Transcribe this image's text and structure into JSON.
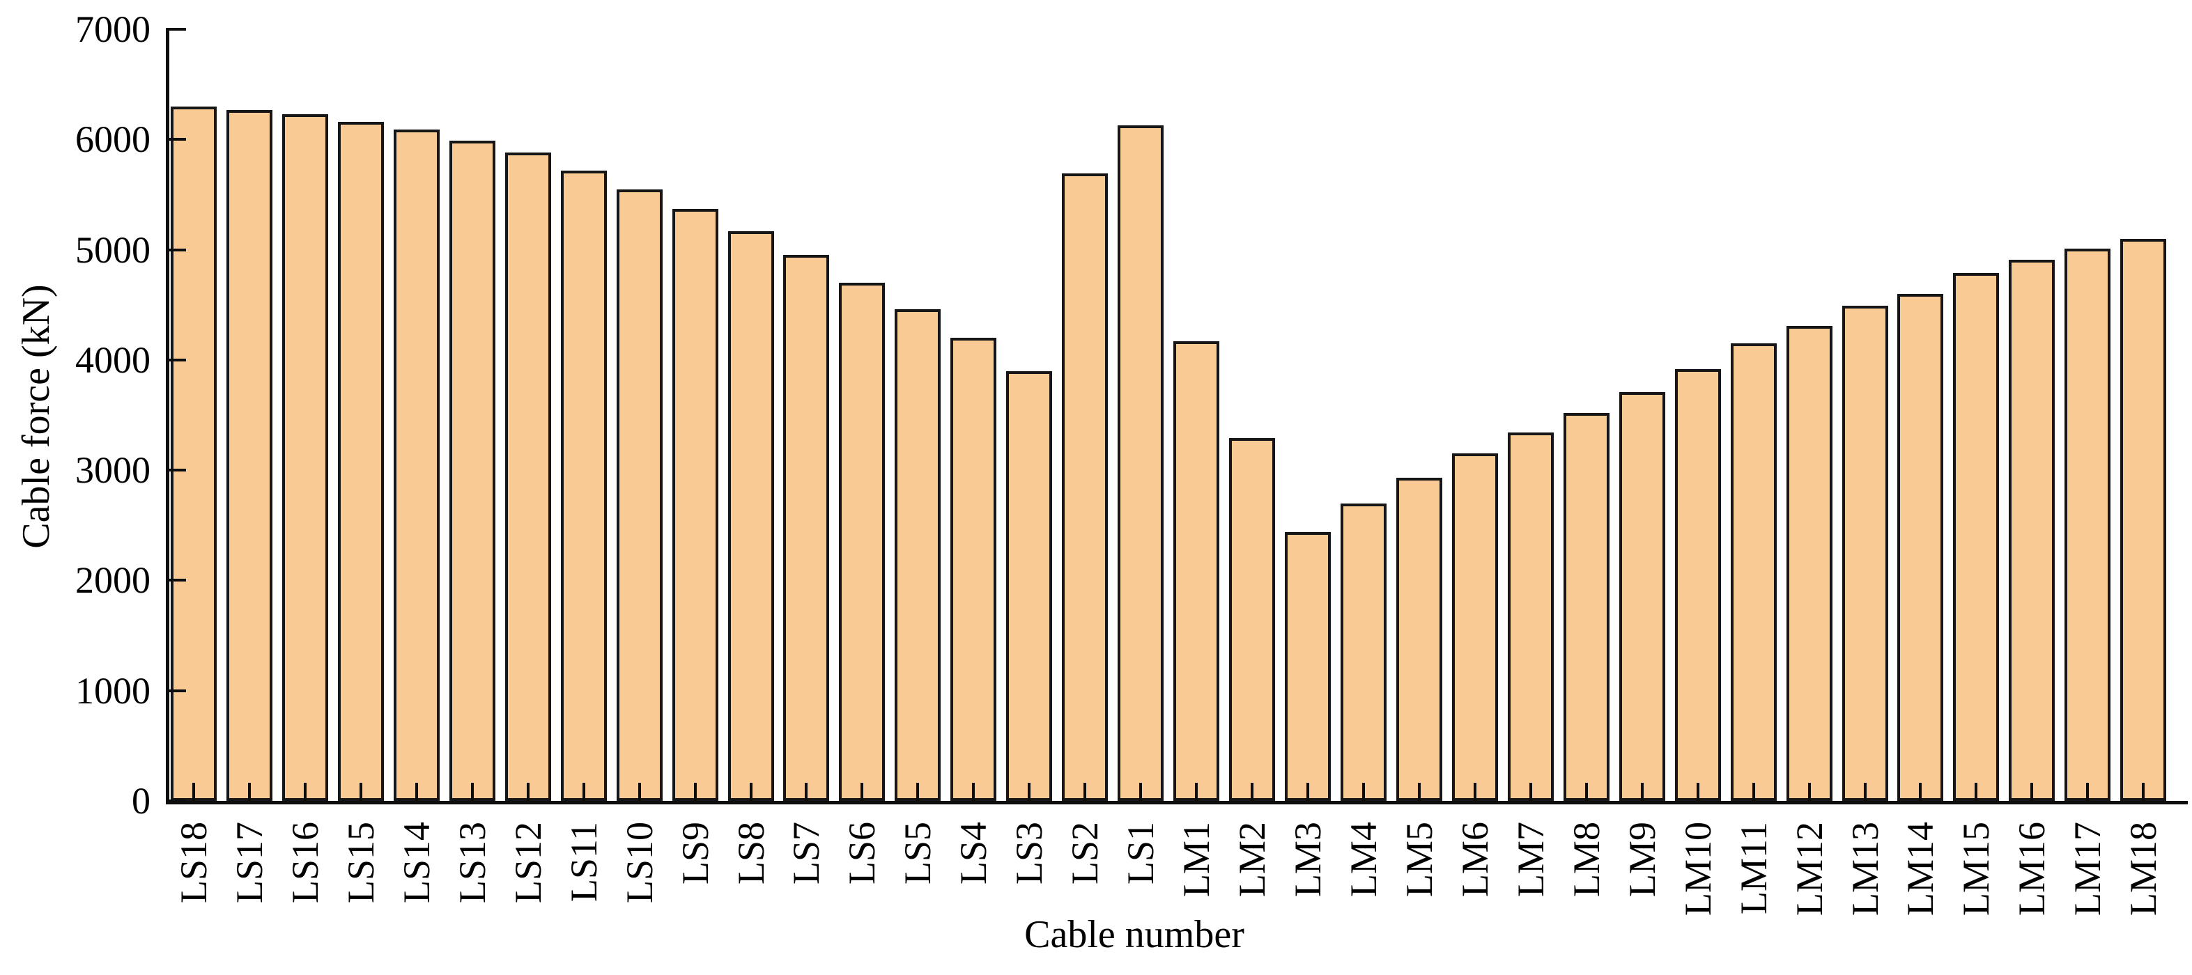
{
  "chart_data": {
    "type": "bar",
    "title": "",
    "xlabel": "Cable number",
    "ylabel": "Cable force (kN)",
    "categories": [
      "LS18",
      "LS17",
      "LS16",
      "LS15",
      "LS14",
      "LS13",
      "LS12",
      "LS11",
      "LS10",
      "LS9",
      "LS8",
      "LS7",
      "LS6",
      "LS5",
      "LS4",
      "LS3",
      "LS2",
      "LS1",
      "LM1",
      "LM2",
      "LM3",
      "LM4",
      "LM5",
      "LM6",
      "LM7",
      "LM8",
      "LM9",
      "LM10",
      "LM11",
      "LM12",
      "LM13",
      "LM14",
      "LM15",
      "LM16",
      "LM17",
      "LM18"
    ],
    "values": [
      6300,
      6270,
      6230,
      6160,
      6090,
      5990,
      5880,
      5720,
      5550,
      5370,
      5170,
      4950,
      4700,
      4460,
      4200,
      3900,
      5690,
      6130,
      4170,
      3290,
      2440,
      2700,
      2930,
      3150,
      3340,
      3520,
      3710,
      3920,
      4150,
      4310,
      4490,
      4600,
      4790,
      4910,
      5010,
      5100
    ],
    "ylim": [
      0,
      7000
    ],
    "yticks": [
      0,
      1000,
      2000,
      3000,
      4000,
      5000,
      6000,
      7000
    ],
    "grid": false,
    "legend": false,
    "bar_fill_color": "#FACA95",
    "bar_border_color": "#161616",
    "axis_color": "#0d0d0d"
  }
}
